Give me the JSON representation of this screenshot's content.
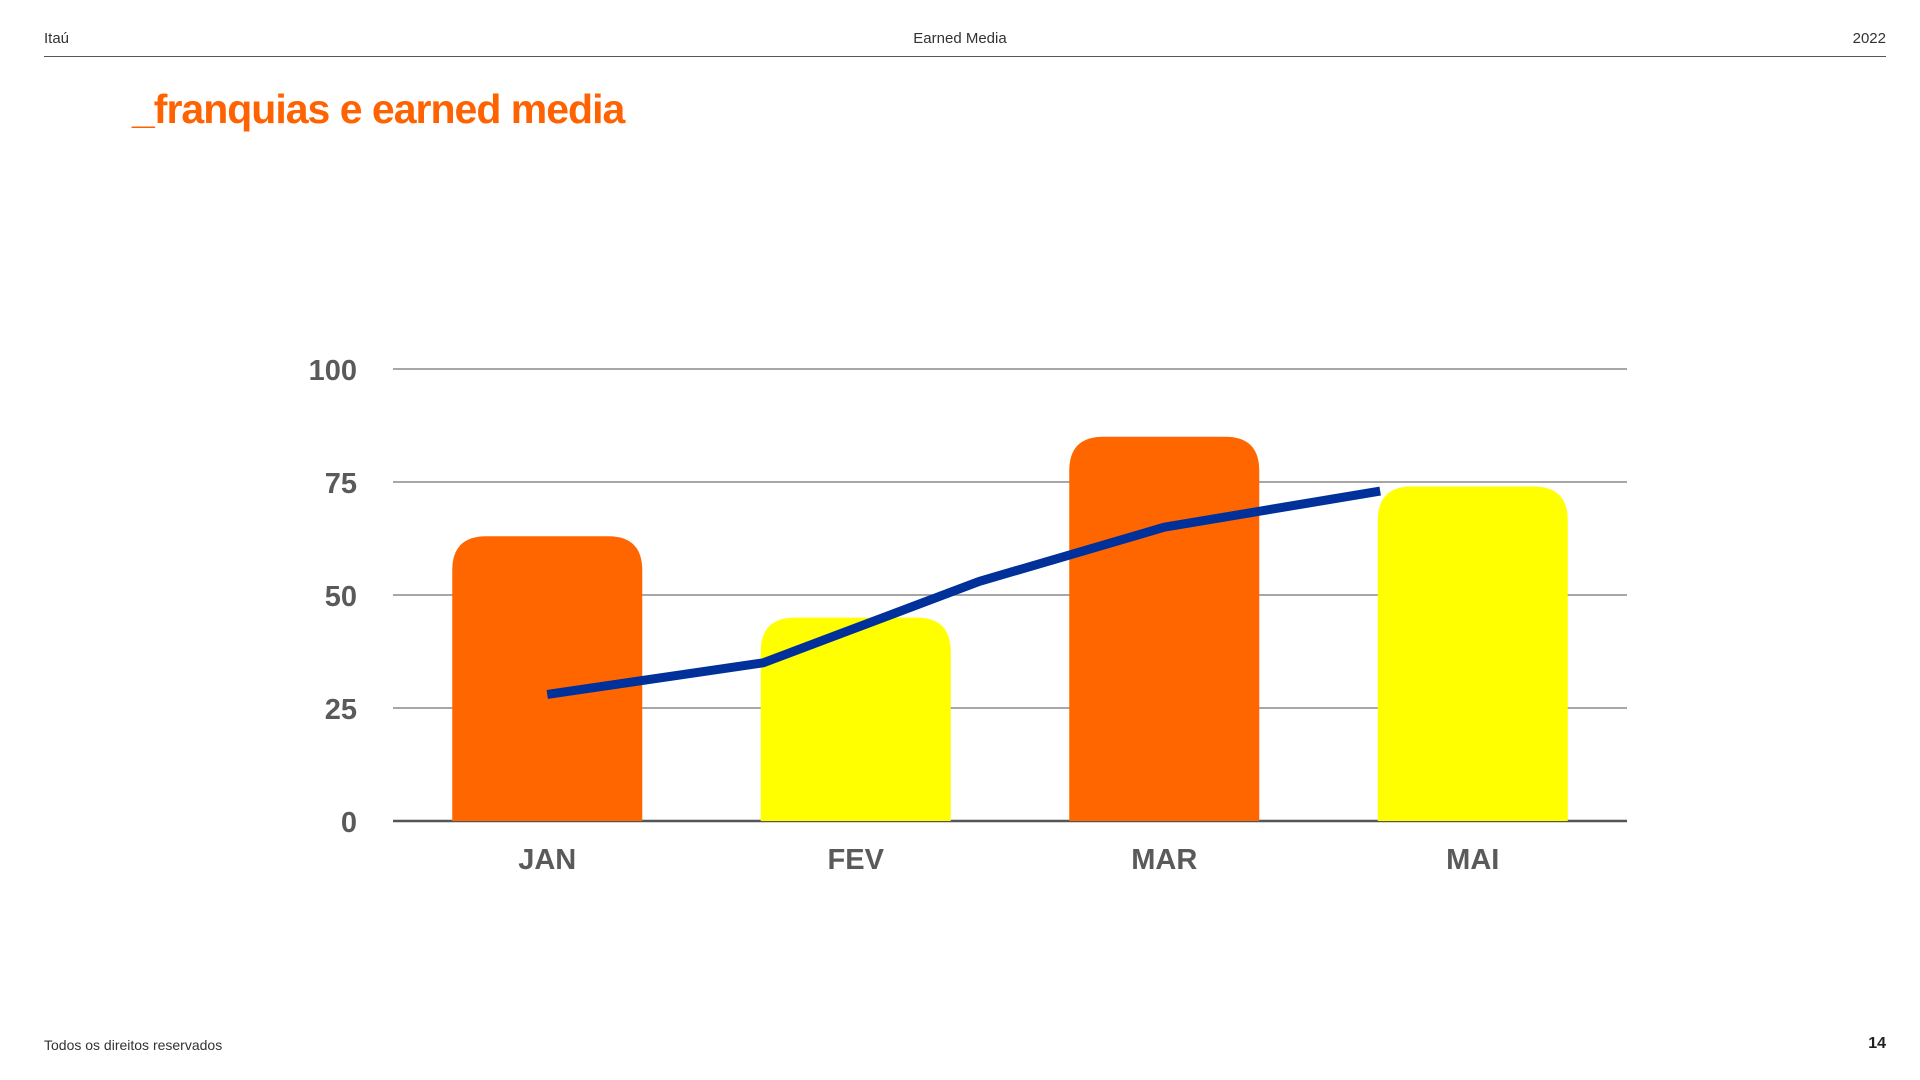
{
  "header": {
    "left": "Itaú",
    "center": "Earned Media",
    "right": "2022"
  },
  "title": "_franquias e earned media",
  "footer": {
    "left": "Todos os direitos reservados",
    "page_number": "14"
  },
  "colors": {
    "accent": "#ff6200",
    "bar_orange": "#ff6600",
    "bar_yellow": "#ffff00",
    "line": "#00309a",
    "axis_text": "#5a5a5a",
    "grid": "#8a8a8a"
  },
  "chart_data": {
    "type": "bar",
    "categories": [
      "JAN",
      "FEV",
      "MAR",
      "MAI"
    ],
    "series": [
      {
        "type": "bar",
        "values": [
          63,
          45,
          85,
          74
        ],
        "colors": [
          "#ff6600",
          "#ffff00",
          "#ff6600",
          "#ffff00"
        ]
      },
      {
        "type": "line",
        "x": [
          0,
          0.7,
          1.4,
          2.0,
          2.7
        ],
        "values": [
          28,
          35,
          53,
          65,
          73
        ],
        "color": "#00309a"
      }
    ],
    "yticks": [
      "0",
      "25",
      "50",
      "75",
      "100"
    ],
    "ylim": [
      0,
      100
    ],
    "grid": true
  }
}
